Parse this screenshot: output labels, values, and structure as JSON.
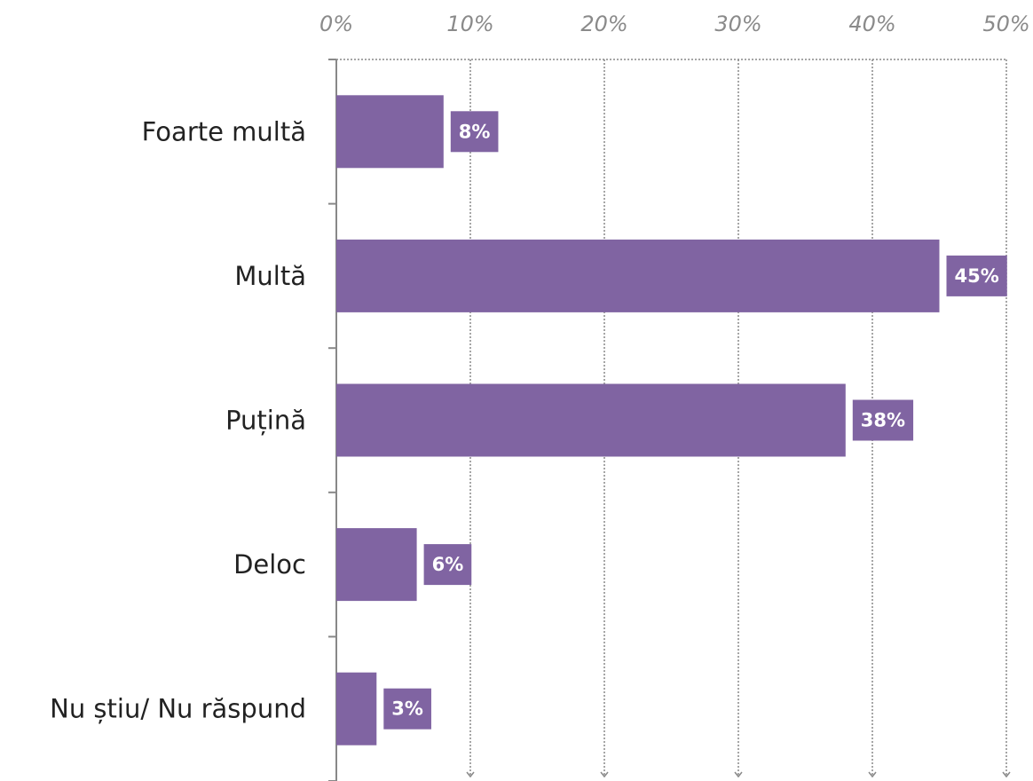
{
  "chart_data": {
    "type": "bar",
    "orientation": "horizontal",
    "categories": [
      "Foarte multă",
      "Multă",
      "Puțină",
      "Deloc",
      "Nu știu/ Nu răspund"
    ],
    "values": [
      8,
      45,
      38,
      6,
      3
    ],
    "value_labels": [
      "8%",
      "45%",
      "38%",
      "6%",
      "3%"
    ],
    "color": "#8064a2",
    "xlim": [
      0,
      50
    ],
    "xticks": [
      {
        "value": 0,
        "label": "0%"
      },
      {
        "value": 10,
        "label": "10%"
      },
      {
        "value": 20,
        "label": "20%"
      },
      {
        "value": 30,
        "label": "30%"
      },
      {
        "value": 40,
        "label": "40%"
      },
      {
        "value": 50,
        "label": "50%"
      }
    ],
    "grid": true
  }
}
